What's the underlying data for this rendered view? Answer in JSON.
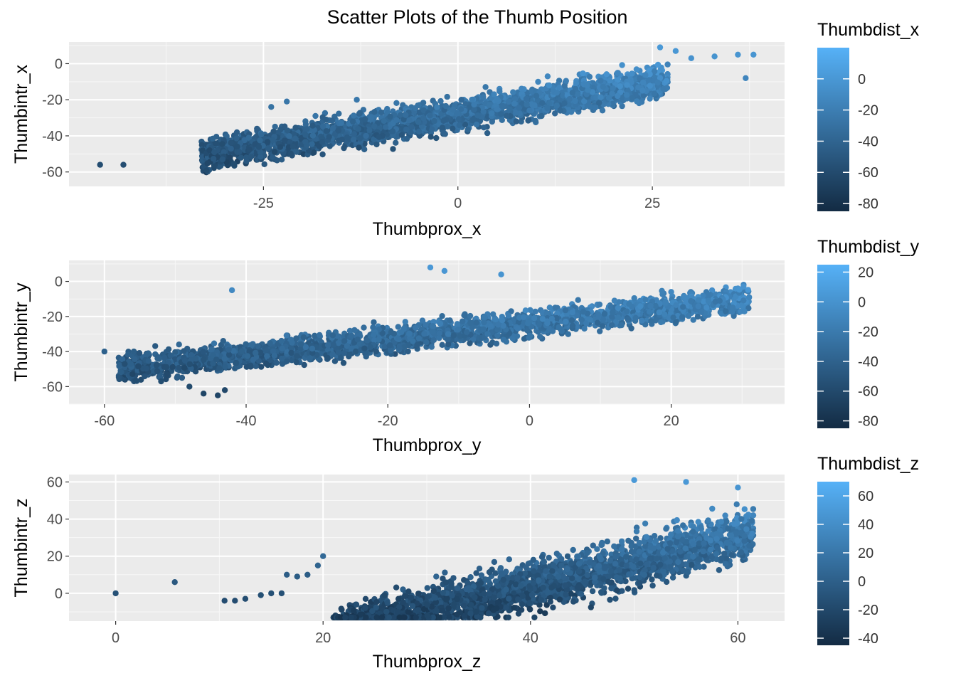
{
  "title": "Scatter Plots of the Thumb Position",
  "colors": {
    "panel_bg": "#ebebeb",
    "grid": "#ffffff",
    "low": "#132b43",
    "high": "#56b1f7"
  },
  "chart_data": [
    {
      "type": "scatter",
      "xlabel": "Thumbprox_x",
      "ylabel": "Thumbintr_x",
      "xlim": [
        -50,
        42
      ],
      "ylim": [
        -68,
        12
      ],
      "x_ticks": [
        -25,
        0,
        25
      ],
      "y_ticks": [
        -60,
        -40,
        -20,
        0
      ],
      "x_tick_labels": [
        "-25",
        "0",
        "25"
      ],
      "y_tick_labels": [
        "-60",
        "-40",
        "-20",
        "0"
      ],
      "grid": true,
      "cloud": {
        "point_count": 2600,
        "trend": {
          "intercept": -28,
          "slope": 0.68
        },
        "x_core": [
          -33,
          27
        ],
        "spread": 15,
        "outliers": [
          [
            -46,
            -56
          ],
          [
            -43,
            -56
          ],
          [
            26,
            9
          ],
          [
            28,
            7
          ],
          [
            30,
            3
          ],
          [
            33,
            4
          ],
          [
            36,
            5
          ],
          [
            38,
            5
          ],
          [
            37,
            -8
          ],
          [
            -22,
            -21
          ],
          [
            -24,
            -24
          ],
          [
            -13,
            -20
          ]
        ]
      },
      "legend": {
        "title": "Thumbdist_x",
        "range": [
          -85,
          20
        ],
        "ticks": [
          -80,
          -60,
          -40,
          -20,
          0
        ],
        "tick_labels": [
          "-80",
          "-60",
          "-40",
          "-20",
          "0"
        ]
      }
    },
    {
      "type": "scatter",
      "xlabel": "Thumbprox_y",
      "ylabel": "Thumbintr_y",
      "xlim": [
        -65,
        36
      ],
      "ylim": [
        -70,
        12
      ],
      "x_ticks": [
        -60,
        -40,
        -20,
        0,
        20
      ],
      "y_ticks": [
        -60,
        -40,
        -20,
        0
      ],
      "x_tick_labels": [
        "-60",
        "-40",
        "-20",
        "0",
        "20"
      ],
      "y_tick_labels": [
        "-60",
        "-40",
        "-20",
        "0"
      ],
      "grid": true,
      "cloud": {
        "point_count": 2600,
        "trend": {
          "intercept": -24,
          "slope": 0.45
        },
        "x_core": [
          -58,
          31
        ],
        "spread": 13,
        "outliers": [
          [
            -48,
            -60
          ],
          [
            -46,
            -64
          ],
          [
            -44,
            -65
          ],
          [
            -43,
            -62
          ],
          [
            -52,
            -57
          ],
          [
            -42,
            -5
          ],
          [
            -14,
            8
          ],
          [
            -12,
            6
          ],
          [
            31,
            -9
          ],
          [
            -4,
            4
          ],
          [
            20,
            -6
          ],
          [
            -60,
            -40
          ]
        ]
      },
      "legend": {
        "title": "Thumbdist_y",
        "range": [
          -85,
          25
        ],
        "ticks": [
          -80,
          -60,
          -40,
          -20,
          0,
          20
        ],
        "tick_labels": [
          "-80",
          "-60",
          "-40",
          "-20",
          "0",
          "20"
        ]
      }
    },
    {
      "type": "scatter",
      "xlabel": "Thumbprox_z",
      "ylabel": "Thumbintr_z",
      "xlim": [
        -4.5,
        64.5
      ],
      "ylim": [
        -15,
        64
      ],
      "x_ticks": [
        0,
        20,
        40,
        60
      ],
      "y_ticks": [
        0,
        20,
        40,
        60
      ],
      "x_tick_labels": [
        "0",
        "20",
        "40",
        "60"
      ],
      "y_tick_labels": [
        "0",
        "20",
        "40",
        "60"
      ],
      "grid": true,
      "cloud": {
        "point_count": 2600,
        "trend": {
          "intercept": -48,
          "slope": 1.3
        },
        "x_core": [
          21,
          61.5
        ],
        "spread": 22,
        "outliers": [
          [
            0,
            0
          ],
          [
            5.7,
            6
          ],
          [
            10.5,
            -4
          ],
          [
            11.5,
            -4
          ],
          [
            12.5,
            -3
          ],
          [
            14,
            -1
          ],
          [
            15,
            0
          ],
          [
            16,
            0
          ],
          [
            16.5,
            10
          ],
          [
            17.5,
            9
          ],
          [
            18.5,
            10
          ],
          [
            19.5,
            15
          ],
          [
            20,
            20
          ],
          [
            50,
            61
          ],
          [
            55,
            60
          ],
          [
            60,
            57
          ]
        ]
      },
      "legend": {
        "title": "Thumbdist_z",
        "range": [
          -45,
          70
        ],
        "ticks": [
          -40,
          -20,
          0,
          20,
          40,
          60
        ],
        "tick_labels": [
          "-40",
          "-20",
          "0",
          "20",
          "40",
          "60"
        ]
      }
    }
  ]
}
